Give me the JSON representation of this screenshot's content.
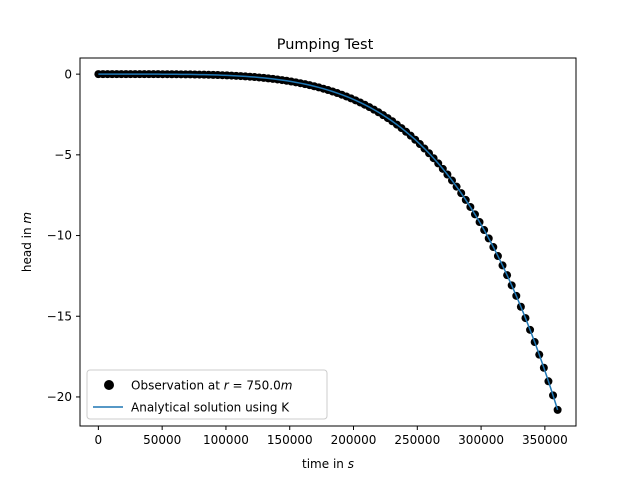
{
  "chart_data": {
    "type": "scatter",
    "title": "Pumping Test",
    "xlabel_prefix": "time in ",
    "xlabel_var": "s",
    "ylabel_prefix": "head in ",
    "ylabel_var": "m",
    "xlim": [
      -14400,
      374400
    ],
    "ylim": [
      -21.8,
      1.0
    ],
    "xticks": [
      0,
      50000,
      100000,
      150000,
      200000,
      250000,
      300000,
      350000
    ],
    "xtick_labels": [
      "0",
      "50000",
      "100000",
      "150000",
      "200000",
      "250000",
      "300000",
      "350000"
    ],
    "yticks": [
      0,
      -5,
      -10,
      -15,
      -20
    ],
    "ytick_labels": [
      "0",
      "−5",
      "−10",
      "−15",
      "−20"
    ],
    "grid": false,
    "legend_position": "lower-left",
    "series": [
      {
        "name_prefix": "Observation at ",
        "name_math": "r = 750.0m",
        "kind": "scatter",
        "color": "#000000",
        "x_start": 0,
        "x_end": 360000,
        "x_step": 3600,
        "model": "power",
        "amplitude": -20.8,
        "exponent": 4.4
      },
      {
        "name": "Analytical solution using K",
        "kind": "line",
        "color": "#1f77b4",
        "x_start": 0,
        "x_end": 360000,
        "x_step": 3600,
        "model": "power",
        "amplitude": -20.8,
        "exponent": 4.4
      }
    ]
  }
}
